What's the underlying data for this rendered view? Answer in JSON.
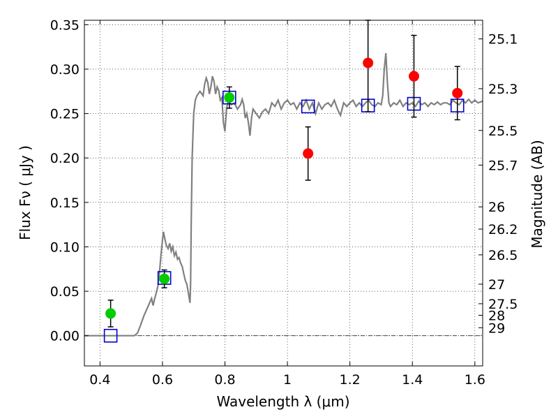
{
  "chart_data": {
    "type": "scatter",
    "xlabel": "Wavelength  λ (μm)",
    "ylabel": "Flux  Fν ( μJy )",
    "ylabel2": "Magnitude (AB)",
    "xlim": [
      0.35,
      1.625
    ],
    "ylim": [
      -0.034,
      0.355
    ],
    "xticks": [
      {
        "value": 0.4,
        "label": "0.4"
      },
      {
        "value": 0.6,
        "label": "0.6"
      },
      {
        "value": 0.8,
        "label": "0.8"
      },
      {
        "value": 1.0,
        "label": "1"
      },
      {
        "value": 1.2,
        "label": "1.2"
      },
      {
        "value": 1.4,
        "label": "1.4"
      },
      {
        "value": 1.6,
        "label": "1.6"
      }
    ],
    "yticks": [
      {
        "value": 0.0,
        "label": "0.00"
      },
      {
        "value": 0.05,
        "label": "0.05"
      },
      {
        "value": 0.1,
        "label": "0.10"
      },
      {
        "value": 0.15,
        "label": "0.15"
      },
      {
        "value": 0.2,
        "label": "0.20"
      },
      {
        "value": 0.25,
        "label": "0.25"
      },
      {
        "value": 0.3,
        "label": "0.30"
      },
      {
        "value": 0.35,
        "label": "0.35"
      }
    ],
    "mag_ticks": [
      {
        "value": 0.334,
        "label": "25.1"
      },
      {
        "value": 0.278,
        "label": "25.3"
      },
      {
        "value": 0.231,
        "label": "25.5"
      },
      {
        "value": 0.192,
        "label": "25.7"
      },
      {
        "value": 0.145,
        "label": "26"
      },
      {
        "value": 0.12,
        "label": "26.2"
      },
      {
        "value": 0.091,
        "label": "26.5"
      },
      {
        "value": 0.058,
        "label": "27"
      },
      {
        "value": 0.036,
        "label": "27.5"
      },
      {
        "value": 0.023,
        "label": "28"
      },
      {
        "value": 0.009,
        "label": "29"
      }
    ],
    "grid": true,
    "model_color": "#808080",
    "model_spectrum": [
      [
        0.35,
        0.0
      ],
      [
        0.51,
        0.0
      ],
      [
        0.52,
        0.003
      ],
      [
        0.53,
        0.012
      ],
      [
        0.54,
        0.022
      ],
      [
        0.55,
        0.03
      ],
      [
        0.56,
        0.038
      ],
      [
        0.565,
        0.042
      ],
      [
        0.57,
        0.034
      ],
      [
        0.575,
        0.042
      ],
      [
        0.58,
        0.048
      ],
      [
        0.585,
        0.055
      ],
      [
        0.59,
        0.07
      ],
      [
        0.595,
        0.09
      ],
      [
        0.6,
        0.108
      ],
      [
        0.603,
        0.117
      ],
      [
        0.607,
        0.11
      ],
      [
        0.612,
        0.102
      ],
      [
        0.618,
        0.098
      ],
      [
        0.623,
        0.104
      ],
      [
        0.628,
        0.095
      ],
      [
        0.633,
        0.1
      ],
      [
        0.638,
        0.09
      ],
      [
        0.643,
        0.094
      ],
      [
        0.648,
        0.086
      ],
      [
        0.653,
        0.088
      ],
      [
        0.658,
        0.082
      ],
      [
        0.663,
        0.078
      ],
      [
        0.668,
        0.07
      ],
      [
        0.673,
        0.062
      ],
      [
        0.678,
        0.058
      ],
      [
        0.683,
        0.048
      ],
      [
        0.688,
        0.037
      ],
      [
        0.69,
        0.06
      ],
      [
        0.692,
        0.13
      ],
      [
        0.695,
        0.2
      ],
      [
        0.7,
        0.25
      ],
      [
        0.705,
        0.265
      ],
      [
        0.71,
        0.27
      ],
      [
        0.72,
        0.275
      ],
      [
        0.73,
        0.27
      ],
      [
        0.735,
        0.283
      ],
      [
        0.74,
        0.29
      ],
      [
        0.745,
        0.285
      ],
      [
        0.75,
        0.272
      ],
      [
        0.755,
        0.28
      ],
      [
        0.76,
        0.292
      ],
      [
        0.765,
        0.286
      ],
      [
        0.77,
        0.272
      ],
      [
        0.775,
        0.28
      ],
      [
        0.78,
        0.276
      ],
      [
        0.785,
        0.265
      ],
      [
        0.79,
        0.268
      ],
      [
        0.795,
        0.24
      ],
      [
        0.8,
        0.23
      ],
      [
        0.805,
        0.255
      ],
      [
        0.81,
        0.265
      ],
      [
        0.82,
        0.26
      ],
      [
        0.83,
        0.262
      ],
      [
        0.84,
        0.255
      ],
      [
        0.85,
        0.26
      ],
      [
        0.855,
        0.266
      ],
      [
        0.86,
        0.26
      ],
      [
        0.865,
        0.245
      ],
      [
        0.87,
        0.25
      ],
      [
        0.875,
        0.24
      ],
      [
        0.88,
        0.225
      ],
      [
        0.885,
        0.245
      ],
      [
        0.89,
        0.255
      ],
      [
        0.9,
        0.25
      ],
      [
        0.91,
        0.245
      ],
      [
        0.92,
        0.252
      ],
      [
        0.93,
        0.255
      ],
      [
        0.94,
        0.25
      ],
      [
        0.95,
        0.262
      ],
      [
        0.96,
        0.258
      ],
      [
        0.97,
        0.265
      ],
      [
        0.98,
        0.255
      ],
      [
        0.99,
        0.262
      ],
      [
        1.0,
        0.265
      ],
      [
        1.01,
        0.26
      ],
      [
        1.02,
        0.262
      ],
      [
        1.03,
        0.255
      ],
      [
        1.04,
        0.262
      ],
      [
        1.05,
        0.258
      ],
      [
        1.06,
        0.265
      ],
      [
        1.07,
        0.255
      ],
      [
        1.08,
        0.262
      ],
      [
        1.09,
        0.25
      ],
      [
        1.1,
        0.262
      ],
      [
        1.11,
        0.255
      ],
      [
        1.12,
        0.26
      ],
      [
        1.13,
        0.262
      ],
      [
        1.14,
        0.258
      ],
      [
        1.15,
        0.265
      ],
      [
        1.16,
        0.255
      ],
      [
        1.17,
        0.248
      ],
      [
        1.18,
        0.262
      ],
      [
        1.19,
        0.258
      ],
      [
        1.2,
        0.262
      ],
      [
        1.21,
        0.265
      ],
      [
        1.22,
        0.258
      ],
      [
        1.23,
        0.262
      ],
      [
        1.24,
        0.258
      ],
      [
        1.25,
        0.262
      ],
      [
        1.26,
        0.265
      ],
      [
        1.27,
        0.26
      ],
      [
        1.28,
        0.258
      ],
      [
        1.29,
        0.262
      ],
      [
        1.3,
        0.26
      ],
      [
        1.305,
        0.27
      ],
      [
        1.31,
        0.3
      ],
      [
        1.315,
        0.318
      ],
      [
        1.32,
        0.285
      ],
      [
        1.325,
        0.262
      ],
      [
        1.33,
        0.258
      ],
      [
        1.34,
        0.262
      ],
      [
        1.35,
        0.26
      ],
      [
        1.36,
        0.265
      ],
      [
        1.37,
        0.258
      ],
      [
        1.38,
        0.262
      ],
      [
        1.39,
        0.26
      ],
      [
        1.4,
        0.262
      ],
      [
        1.41,
        0.258
      ],
      [
        1.42,
        0.264
      ],
      [
        1.43,
        0.26
      ],
      [
        1.44,
        0.262
      ],
      [
        1.45,
        0.258
      ],
      [
        1.46,
        0.262
      ],
      [
        1.47,
        0.26
      ],
      [
        1.48,
        0.263
      ],
      [
        1.49,
        0.26
      ],
      [
        1.5,
        0.262
      ],
      [
        1.51,
        0.262
      ],
      [
        1.52,
        0.26
      ],
      [
        1.53,
        0.265
      ],
      [
        1.54,
        0.262
      ],
      [
        1.55,
        0.26
      ],
      [
        1.56,
        0.265
      ],
      [
        1.57,
        0.262
      ],
      [
        1.58,
        0.266
      ],
      [
        1.59,
        0.262
      ],
      [
        1.6,
        0.265
      ],
      [
        1.61,
        0.262
      ],
      [
        1.625,
        0.264
      ]
    ],
    "model_photometry": {
      "color": "#0000cc",
      "points": [
        {
          "x": 0.434,
          "y": 0.0
        },
        {
          "x": 0.606,
          "y": 0.065
        },
        {
          "x": 0.814,
          "y": 0.268
        },
        {
          "x": 1.066,
          "y": 0.258
        },
        {
          "x": 1.258,
          "y": 0.259
        },
        {
          "x": 1.405,
          "y": 0.261
        },
        {
          "x": 1.544,
          "y": 0.259
        }
      ]
    },
    "observed_optical": {
      "color": "#00cc00",
      "points": [
        {
          "x": 0.434,
          "y": 0.025,
          "err": 0.015
        },
        {
          "x": 0.606,
          "y": 0.064,
          "err": 0.01
        },
        {
          "x": 0.814,
          "y": 0.268,
          "err": 0.012
        }
      ]
    },
    "observed_ir": {
      "color": "#ff0000",
      "points": [
        {
          "x": 1.066,
          "y": 0.205,
          "err": 0.03
        },
        {
          "x": 1.258,
          "y": 0.307,
          "err": 0.055
        },
        {
          "x": 1.405,
          "y": 0.292,
          "err": 0.046
        },
        {
          "x": 1.544,
          "y": 0.273,
          "err": 0.03
        }
      ]
    }
  }
}
